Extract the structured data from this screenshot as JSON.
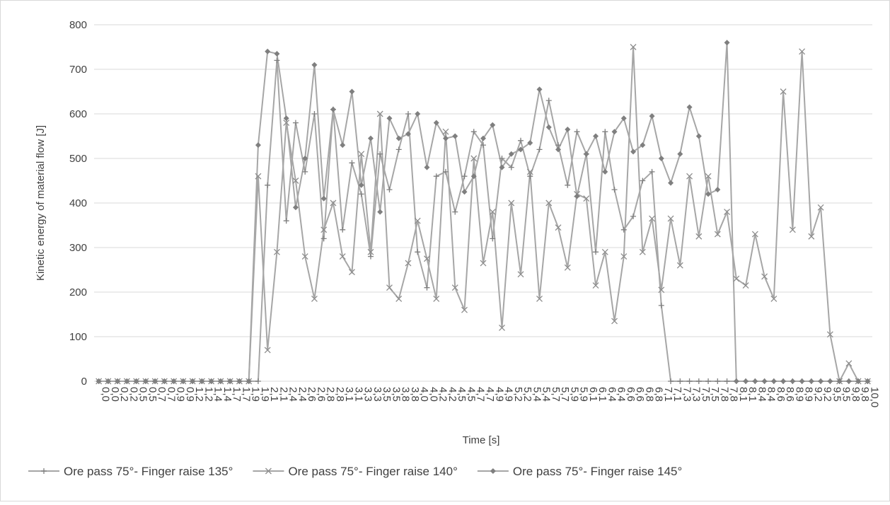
{
  "chart_data": {
    "type": "line",
    "x_label": "Time [s]",
    "y_label": "Kinetic energy  of material flow [J]",
    "categories": [
      "0,0",
      "0,0",
      "0,2",
      "0,2",
      "0,5",
      "0,5",
      "0,7",
      "0,7",
      "0,9",
      "0,9",
      "1,2",
      "1,2",
      "1,4",
      "1,4",
      "1,7",
      "1,7",
      "1,9",
      "1,9",
      "2,1",
      "2,1",
      "2,4",
      "2,4",
      "2,6",
      "2,6",
      "2,8",
      "2,8",
      "3,1",
      "3,1",
      "3,3",
      "3,3",
      "3,5",
      "3,5",
      "3,8",
      "3,8",
      "4,0",
      "4,0",
      "4,2",
      "4,2",
      "4,5",
      "4,5",
      "4,7",
      "4,7",
      "4,9",
      "4,9",
      "5,2",
      "5,2",
      "5,4",
      "5,4",
      "5,7",
      "5,7",
      "5,9",
      "5,9",
      "6,1",
      "6,1",
      "6,4",
      "6,4",
      "6,6",
      "6,6",
      "6,8",
      "6,8",
      "7,1",
      "7,1",
      "7,3",
      "7,3",
      "7,5",
      "7,5",
      "7,8",
      "7,8",
      "8,1",
      "8,1",
      "8,4",
      "8,4",
      "8,6",
      "8,6",
      "8,9",
      "8,9",
      "9,2",
      "9,2",
      "9,5",
      "9,5",
      "9,8",
      "9,8",
      "10,0"
    ],
    "series": [
      {
        "name": "Ore pass 75°- Finger raise 135°",
        "color": "#a6a6a6",
        "marker": "plus",
        "values": [
          0,
          0,
          0,
          0,
          0,
          0,
          0,
          0,
          0,
          0,
          0,
          0,
          0,
          0,
          0,
          0,
          0,
          0,
          440,
          720,
          360,
          580,
          470,
          600,
          320,
          610,
          340,
          490,
          420,
          280,
          510,
          430,
          520,
          600,
          290,
          210,
          460,
          470,
          380,
          460,
          560,
          530,
          320,
          500,
          480,
          540,
          460,
          520,
          630,
          530,
          440,
          560,
          510,
          290,
          560,
          430,
          340,
          370,
          450,
          470,
          170,
          0,
          0,
          0,
          0,
          0,
          0,
          0,
          0,
          0,
          0,
          0,
          0,
          0,
          0,
          0,
          0,
          0,
          0,
          0,
          0,
          0,
          0
        ]
      },
      {
        "name": "Ore pass 75°- Finger raise 140°",
        "color": "#a6a6a6",
        "marker": "cross",
        "values": [
          0,
          0,
          0,
          0,
          0,
          0,
          0,
          0,
          0,
          0,
          0,
          0,
          0,
          0,
          0,
          0,
          0,
          460,
          70,
          290,
          580,
          450,
          280,
          185,
          340,
          400,
          280,
          245,
          510,
          290,
          600,
          210,
          185,
          265,
          360,
          275,
          185,
          560,
          210,
          160,
          500,
          265,
          380,
          120,
          400,
          240,
          470,
          185,
          400,
          345,
          255,
          420,
          410,
          215,
          290,
          135,
          280,
          750,
          290,
          365,
          205,
          365,
          260,
          460,
          325,
          460,
          330,
          380,
          230,
          215,
          330,
          235,
          185,
          650,
          340,
          740,
          325,
          390,
          105,
          0,
          40,
          0,
          0
        ]
      },
      {
        "name": "Ore pass 75°- Finger raise 145°",
        "color": "#a6a6a6",
        "marker": "diamond",
        "values": [
          0,
          0,
          0,
          0,
          0,
          0,
          0,
          0,
          0,
          0,
          0,
          0,
          0,
          0,
          0,
          0,
          0,
          530,
          740,
          735,
          590,
          390,
          500,
          710,
          410,
          610,
          530,
          650,
          440,
          545,
          380,
          590,
          545,
          555,
          600,
          480,
          580,
          545,
          550,
          425,
          460,
          545,
          575,
          480,
          510,
          520,
          535,
          655,
          570,
          520,
          565,
          415,
          510,
          550,
          470,
          560,
          590,
          515,
          530,
          595,
          500,
          445,
          510,
          615,
          550,
          420,
          430,
          760,
          0,
          0,
          0,
          0,
          0,
          0,
          0,
          0,
          0,
          0,
          0,
          0,
          0,
          0,
          0
        ]
      }
    ],
    "ylim": [
      0,
      800
    ],
    "yticks": [
      0,
      100,
      200,
      300,
      400,
      500,
      600,
      700,
      800
    ],
    "grid": true,
    "legend": "bottom"
  }
}
